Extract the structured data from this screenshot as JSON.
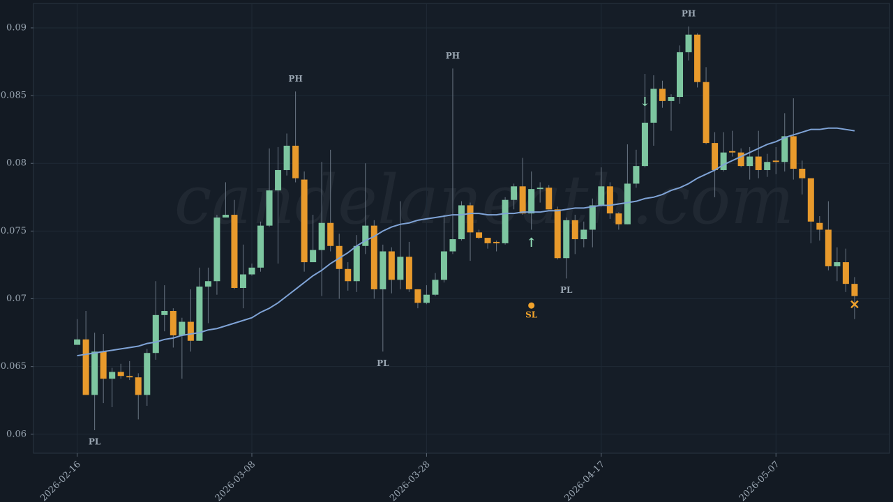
{
  "chart_data": {
    "type": "candlestick",
    "watermark": "candelaneath.com",
    "x": [
      "2026-02-16",
      "2026-02-17",
      "2026-02-18",
      "2026-02-19",
      "2026-02-20",
      "2026-02-21",
      "2026-02-22",
      "2026-02-23",
      "2026-02-24",
      "2026-02-25",
      "2026-02-26",
      "2026-02-27",
      "2026-02-28",
      "2026-03-01",
      "2026-03-02",
      "2026-03-03",
      "2026-03-04",
      "2026-03-05",
      "2026-03-06",
      "2026-03-07",
      "2026-03-08",
      "2026-03-09",
      "2026-03-10",
      "2026-03-11",
      "2026-03-12",
      "2026-03-13",
      "2026-03-14",
      "2026-03-15",
      "2026-03-16",
      "2026-03-17",
      "2026-03-18",
      "2026-03-19",
      "2026-03-20",
      "2026-03-21",
      "2026-03-22",
      "2026-03-23",
      "2026-03-24",
      "2026-03-25",
      "2026-03-26",
      "2026-03-27",
      "2026-03-28",
      "2026-03-29",
      "2026-03-30",
      "2026-03-31",
      "2026-04-01",
      "2026-04-02",
      "2026-04-03",
      "2026-04-04",
      "2026-04-05",
      "2026-04-06",
      "2026-04-07",
      "2026-04-08",
      "2026-04-09",
      "2026-04-10",
      "2026-04-11",
      "2026-04-12",
      "2026-04-13",
      "2026-04-14",
      "2026-04-15",
      "2026-04-16",
      "2026-04-17",
      "2026-04-18",
      "2026-04-19",
      "2026-04-20",
      "2026-04-21",
      "2026-04-22",
      "2026-04-23",
      "2026-04-24",
      "2026-04-25",
      "2026-04-26",
      "2026-04-27",
      "2026-04-28",
      "2026-04-29",
      "2026-04-30",
      "2026-05-01",
      "2026-05-02",
      "2026-05-03",
      "2026-05-04",
      "2026-05-05",
      "2026-05-06",
      "2026-05-07",
      "2026-05-08",
      "2026-05-09",
      "2026-05-10",
      "2026-05-11",
      "2026-05-12",
      "2026-05-13",
      "2026-05-14",
      "2026-05-15",
      "2026-05-16"
    ],
    "open": [
      0.0666,
      0.067,
      0.0629,
      0.0661,
      0.0641,
      0.0646,
      0.0643,
      0.0642,
      0.0629,
      0.066,
      0.0688,
      0.0691,
      0.0673,
      0.0683,
      0.0669,
      0.0709,
      0.0713,
      0.076,
      0.0762,
      0.0708,
      0.0718,
      0.0723,
      0.0754,
      0.078,
      0.0795,
      0.0813,
      0.0788,
      0.0727,
      0.0736,
      0.0756,
      0.0739,
      0.0722,
      0.0713,
      0.0739,
      0.0754,
      0.0707,
      0.0735,
      0.0714,
      0.0731,
      0.0707,
      0.0697,
      0.0703,
      0.0714,
      0.0735,
      0.0744,
      0.0769,
      0.0749,
      0.0745,
      0.0742,
      0.0741,
      0.0773,
      0.0783,
      0.0763,
      0.0781,
      0.0782,
      0.0766,
      0.073,
      0.0758,
      0.0744,
      0.0751,
      0.0769,
      0.0783,
      0.0763,
      0.0755,
      0.0785,
      0.0798,
      0.083,
      0.0855,
      0.0846,
      0.0849,
      0.0882,
      0.0895,
      0.086,
      0.0815,
      0.0795,
      0.0809,
      0.0808,
      0.0798,
      0.0805,
      0.0795,
      0.0802,
      0.0801,
      0.082,
      0.0796,
      0.0789,
      0.0756,
      0.0751,
      0.0724,
      0.0727,
      0.0711
    ],
    "high": [
      0.0685,
      0.0691,
      0.0675,
      0.0674,
      0.0649,
      0.0652,
      0.0654,
      0.0645,
      0.0663,
      0.0713,
      0.071,
      0.0693,
      0.0686,
      0.0707,
      0.0723,
      0.0723,
      0.0762,
      0.0786,
      0.0773,
      0.074,
      0.0726,
      0.0757,
      0.0811,
      0.0812,
      0.0822,
      0.0853,
      0.0794,
      0.0762,
      0.0801,
      0.081,
      0.0748,
      0.0727,
      0.0747,
      0.08,
      0.0758,
      0.074,
      0.0738,
      0.0772,
      0.0742,
      0.0707,
      0.071,
      0.0719,
      0.0762,
      0.087,
      0.0772,
      0.0771,
      0.0751,
      0.0745,
      0.0743,
      0.0775,
      0.0785,
      0.0804,
      0.0794,
      0.0786,
      0.0784,
      0.0768,
      0.076,
      0.0762,
      0.0757,
      0.0774,
      0.0797,
      0.0786,
      0.0764,
      0.0814,
      0.081,
      0.0866,
      0.0865,
      0.0861,
      0.0851,
      0.0887,
      0.0901,
      0.0896,
      0.0871,
      0.0823,
      0.0823,
      0.0824,
      0.0811,
      0.0812,
      0.0824,
      0.0807,
      0.0812,
      0.0837,
      0.0848,
      0.0802,
      0.0789,
      0.0761,
      0.0772,
      0.0738,
      0.0737,
      0.0716
    ],
    "low": [
      0.0666,
      0.0629,
      0.0603,
      0.0623,
      0.062,
      0.0641,
      0.064,
      0.0611,
      0.0621,
      0.0655,
      0.0676,
      0.0664,
      0.0641,
      0.0661,
      0.0669,
      0.0682,
      0.0703,
      0.076,
      0.0707,
      0.0693,
      0.0717,
      0.072,
      0.0753,
      0.0726,
      0.0791,
      0.0786,
      0.072,
      0.0727,
      0.0702,
      0.0735,
      0.07,
      0.0706,
      0.0705,
      0.0733,
      0.07,
      0.0661,
      0.0704,
      0.0707,
      0.0705,
      0.0693,
      0.0696,
      0.0702,
      0.0712,
      0.0733,
      0.0743,
      0.0728,
      0.0744,
      0.0737,
      0.0735,
      0.074,
      0.0766,
      0.0762,
      0.0751,
      0.0771,
      0.0766,
      0.0729,
      0.0715,
      0.0733,
      0.0738,
      0.0738,
      0.0768,
      0.0759,
      0.0751,
      0.0755,
      0.0782,
      0.0797,
      0.0813,
      0.0841,
      0.0824,
      0.0844,
      0.0876,
      0.0856,
      0.0814,
      0.0775,
      0.0794,
      0.0805,
      0.0797,
      0.0788,
      0.0789,
      0.079,
      0.0792,
      0.0794,
      0.0788,
      0.0777,
      0.0741,
      0.0743,
      0.0721,
      0.0713,
      0.0705,
      0.0685
    ],
    "close": [
      0.067,
      0.0629,
      0.0661,
      0.0641,
      0.0646,
      0.0643,
      0.0642,
      0.0629,
      0.066,
      0.0688,
      0.0691,
      0.0673,
      0.0683,
      0.0669,
      0.0709,
      0.0713,
      0.076,
      0.0762,
      0.0708,
      0.0718,
      0.0723,
      0.0754,
      0.078,
      0.0795,
      0.0813,
      0.0789,
      0.0727,
      0.0736,
      0.0756,
      0.0739,
      0.0722,
      0.0713,
      0.0739,
      0.0754,
      0.0707,
      0.0735,
      0.0714,
      0.0731,
      0.0707,
      0.0697,
      0.0703,
      0.0714,
      0.0735,
      0.0744,
      0.0769,
      0.0749,
      0.0745,
      0.0741,
      0.0741,
      0.0773,
      0.0783,
      0.0763,
      0.0781,
      0.0782,
      0.0766,
      0.073,
      0.0758,
      0.0744,
      0.0751,
      0.0769,
      0.0783,
      0.0763,
      0.0755,
      0.0785,
      0.0798,
      0.083,
      0.0855,
      0.0846,
      0.0849,
      0.0882,
      0.0895,
      0.086,
      0.0815,
      0.0795,
      0.0808,
      0.0808,
      0.0798,
      0.0805,
      0.0795,
      0.0801,
      0.0801,
      0.082,
      0.0796,
      0.0789,
      0.0757,
      0.0751,
      0.0724,
      0.0727,
      0.0711,
      0.0702
    ],
    "up_color": "#7dc6a0",
    "down_color": "#e89a2c",
    "ma": {
      "color": "#7fa3d6",
      "values": [
        0.0658,
        0.0659,
        0.066,
        0.0661,
        0.0662,
        0.0663,
        0.0664,
        0.0665,
        0.0667,
        0.0668,
        0.067,
        0.0671,
        0.0673,
        0.0674,
        0.0675,
        0.0677,
        0.0678,
        0.068,
        0.0682,
        0.0684,
        0.0686,
        0.069,
        0.0693,
        0.0697,
        0.0702,
        0.0707,
        0.0712,
        0.0717,
        0.0721,
        0.0726,
        0.073,
        0.0734,
        0.0739,
        0.0743,
        0.0746,
        0.075,
        0.0753,
        0.0755,
        0.0756,
        0.0758,
        0.0759,
        0.076,
        0.0761,
        0.0762,
        0.0762,
        0.0763,
        0.0763,
        0.0762,
        0.0762,
        0.0763,
        0.0763,
        0.0764,
        0.0764,
        0.0764,
        0.0765,
        0.0765,
        0.0766,
        0.0767,
        0.0767,
        0.0768,
        0.0769,
        0.0769,
        0.077,
        0.0771,
        0.0772,
        0.0774,
        0.0775,
        0.0777,
        0.078,
        0.0782,
        0.0785,
        0.0789,
        0.0792,
        0.0795,
        0.0799,
        0.0802,
        0.0805,
        0.0808,
        0.0811,
        0.0814,
        0.0816,
        0.0819,
        0.0821,
        0.0823,
        0.0825,
        0.0825,
        0.0826,
        0.0826,
        0.0825,
        0.0824
      ]
    },
    "pivot_highs": [
      {
        "date": "2026-03-13",
        "label": "PH"
      },
      {
        "date": "2026-03-31",
        "label": "PH"
      },
      {
        "date": "2026-04-27",
        "label": "PH"
      }
    ],
    "pivot_lows": [
      {
        "date": "2026-02-18",
        "label": "PL"
      },
      {
        "date": "2026-03-23",
        "label": "PL"
      },
      {
        "date": "2026-04-13",
        "label": "PL"
      }
    ],
    "signals": [
      {
        "date": "2026-04-22",
        "value": 0.0845,
        "label": "↓",
        "color": "#8fd8b4"
      },
      {
        "date": "2026-04-09",
        "value": 0.0741,
        "label": "↑",
        "color": "#8fd8b4"
      }
    ],
    "stop_loss": {
      "date": "2026-04-09",
      "value": 0.0695,
      "label": "SL",
      "color": "#f0a22c"
    },
    "exit": {
      "date": "2026-05-16",
      "value": 0.0695,
      "label": "✕",
      "color": "#f0a22c"
    },
    "xlim": [
      "2026-02-11",
      "2026-05-20"
    ],
    "xticks": [
      "2026-02-16",
      "2026-03-08",
      "2026-03-28",
      "2026-04-17",
      "2026-05-07"
    ],
    "ylim": [
      0.0586,
      0.0918
    ],
    "yticks": [
      0.06,
      0.065,
      0.07,
      0.075,
      0.08,
      0.085,
      0.09
    ],
    "grid": true
  }
}
